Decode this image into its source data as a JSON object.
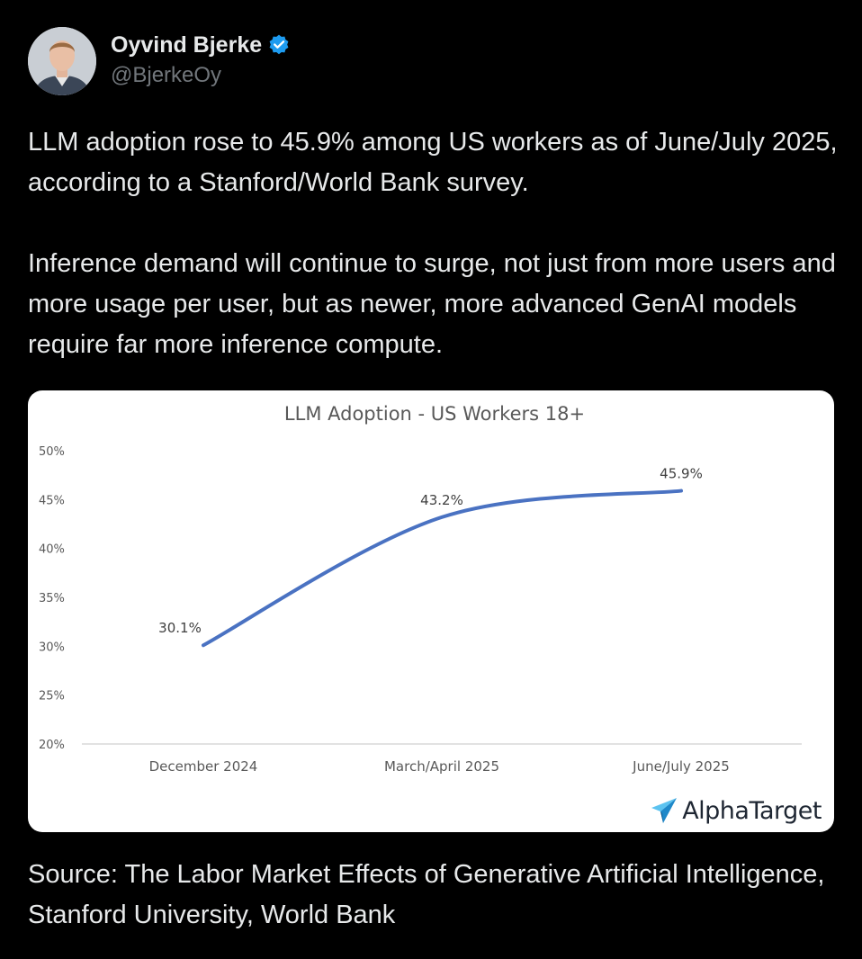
{
  "author": {
    "display_name": "Oyvind Bjerke",
    "handle": "@BjerkeOy",
    "verified_icon": "verified-badge-icon",
    "verified_color": "#1d9bf0"
  },
  "tweet": {
    "paragraphs": [
      "LLM adoption rose to 45.9% among US workers as of June/July 2025, according to a Stanford/World Bank survey.",
      "Inference demand will continue to surge, not just from more users and more usage per user, but as newer, more advanced GenAI models require far more inference compute."
    ],
    "source": "Source: The Labor Market Effects of Generative Artificial Intelligence, Stanford University, World Bank"
  },
  "media": {
    "brand_name": "AlphaTarget",
    "brand_icon": "paper-plane-icon"
  },
  "chart_data": {
    "type": "line",
    "title": "LLM Adoption - US Workers 18+",
    "categories": [
      "December 2024",
      "March/April 2025",
      "June/July 2025"
    ],
    "series": [
      {
        "values": [
          30.1,
          43.2,
          45.9
        ],
        "labels": [
          "30.1%",
          "43.2%",
          "45.9%"
        ],
        "color": "#4a72c2"
      }
    ],
    "yticks": [
      20,
      25,
      30,
      35,
      40,
      45,
      50
    ],
    "ytick_labels": [
      "20%",
      "25%",
      "30%",
      "35%",
      "40%",
      "45%",
      "50%"
    ],
    "ylim": [
      20,
      50
    ],
    "xlabel": "",
    "ylabel": "",
    "grid": false,
    "legend": "none",
    "smooth": true
  }
}
